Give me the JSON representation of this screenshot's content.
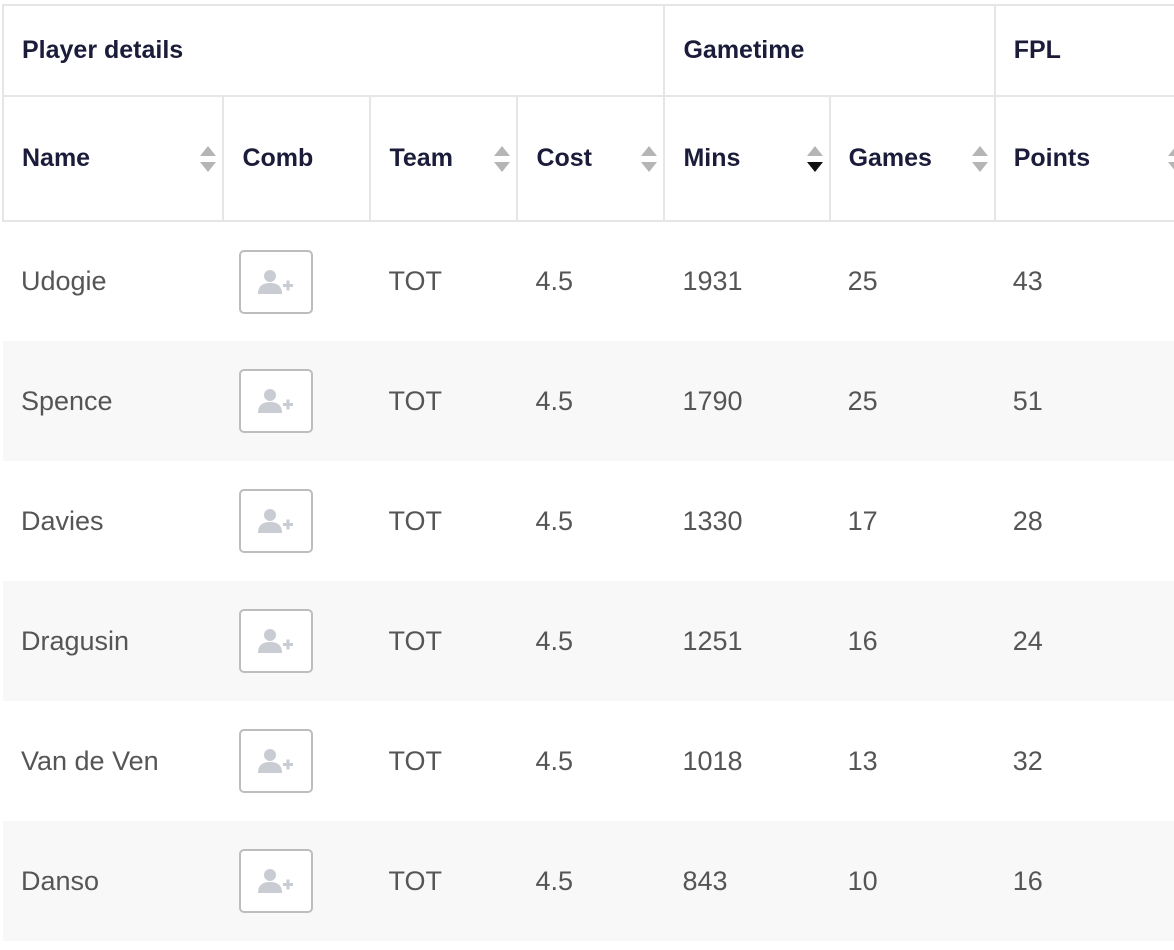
{
  "groups": {
    "player_details": "Player details",
    "gametime": "Gametime",
    "fpl": "FPL"
  },
  "columns": {
    "name": "Name",
    "comb": "Comb",
    "team": "Team",
    "cost": "Cost",
    "mins": "Mins",
    "games": "Games",
    "points": "Points"
  },
  "sort": {
    "column": "Mins",
    "direction": "descending"
  },
  "icons": {
    "comb": "add-user-icon",
    "sort": "sort-arrows-icon"
  },
  "colors": {
    "header_text": "#1b1b3a",
    "cell_text": "#555555",
    "row_alt": "#f8f8f8",
    "border": "#e6e6e6"
  },
  "rows": [
    {
      "name": "Udogie",
      "team": "TOT",
      "cost": "4.5",
      "mins": "1931",
      "games": "25",
      "points": "43"
    },
    {
      "name": "Spence",
      "team": "TOT",
      "cost": "4.5",
      "mins": "1790",
      "games": "25",
      "points": "51"
    },
    {
      "name": "Davies",
      "team": "TOT",
      "cost": "4.5",
      "mins": "1330",
      "games": "17",
      "points": "28"
    },
    {
      "name": "Dragusin",
      "team": "TOT",
      "cost": "4.5",
      "mins": "1251",
      "games": "16",
      "points": "24"
    },
    {
      "name": "Van de Ven",
      "team": "TOT",
      "cost": "4.5",
      "mins": "1018",
      "games": "13",
      "points": "32"
    },
    {
      "name": "Danso",
      "team": "TOT",
      "cost": "4.5",
      "mins": "843",
      "games": "10",
      "points": "16"
    }
  ]
}
